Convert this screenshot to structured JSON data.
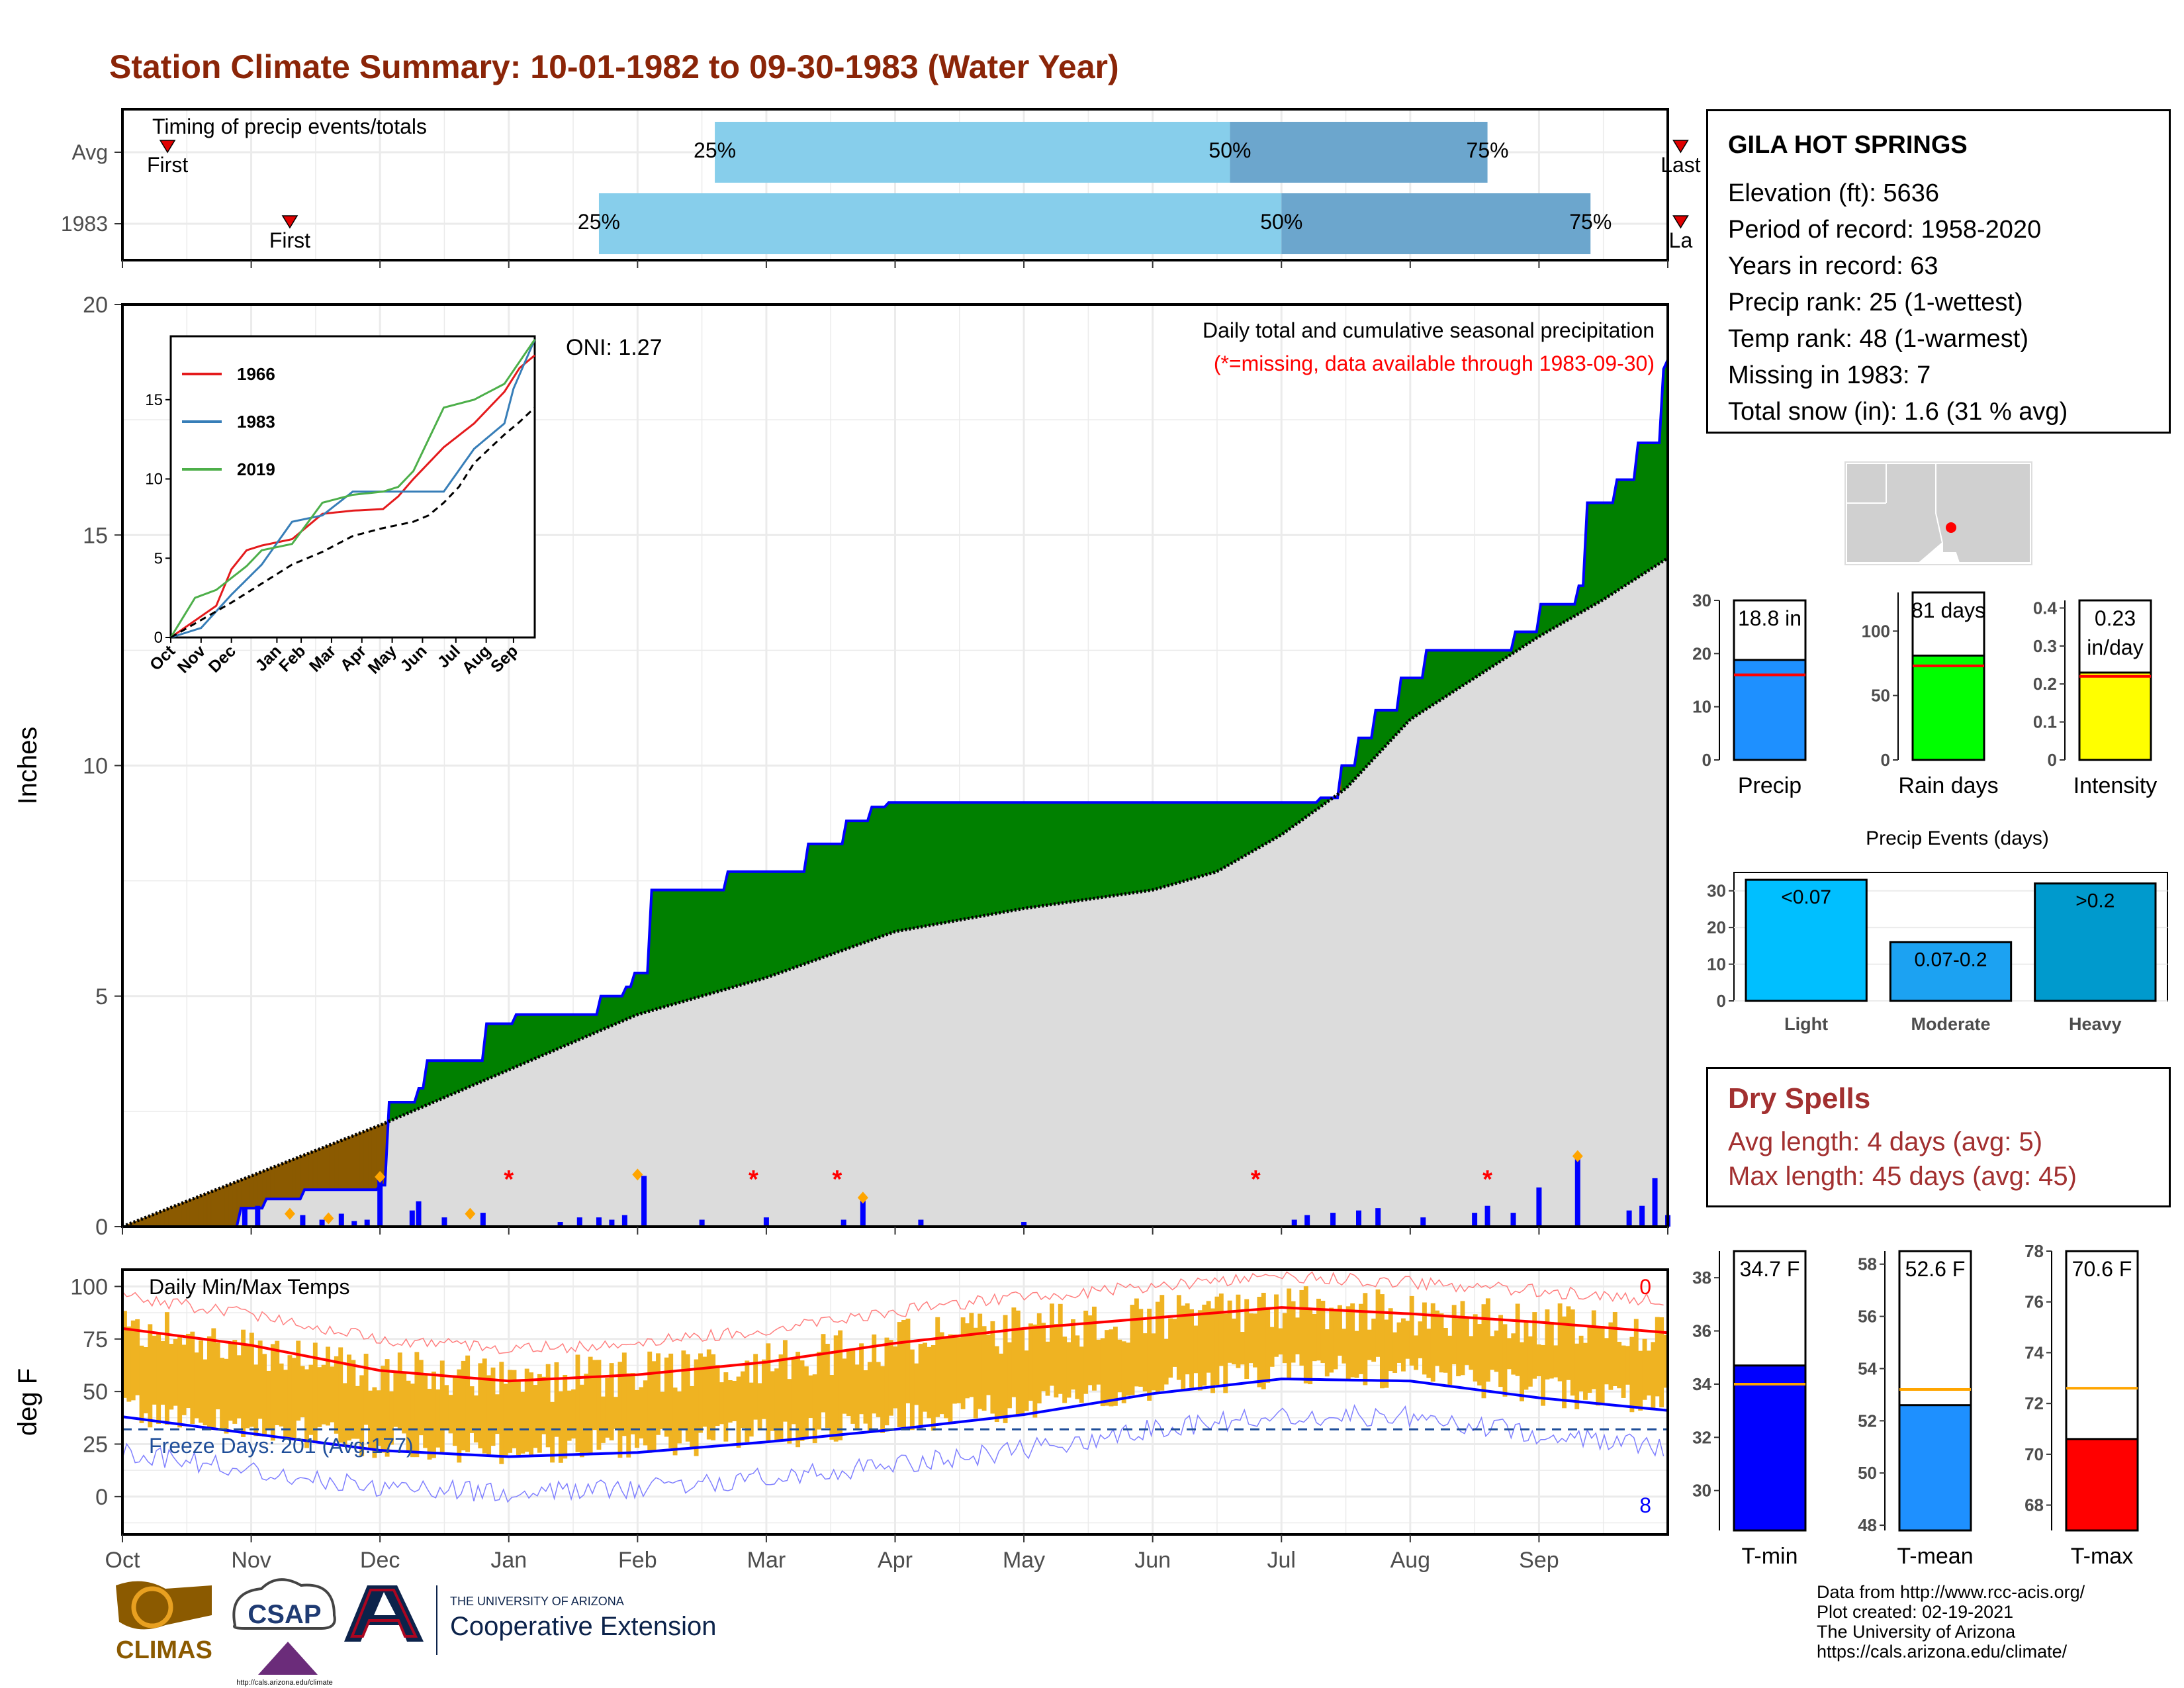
{
  "header": {
    "title": "Station Climate Summary: 10-01-1982 to 09-30-1983 (Water Year)"
  },
  "timing": {
    "label": "Timing of precip events/totals",
    "rows": [
      {
        "name": "Avg",
        "first": 0.35,
        "q25": 4.6,
        "q50": 8.6,
        "q75": 10.6,
        "last": 12.1,
        "first_label": "First",
        "last_label": "Last"
      },
      {
        "name": "1983",
        "first": 1.3,
        "q25": 3.7,
        "q50": 9.0,
        "q75": 11.4,
        "last": 12.1,
        "first_label": "First",
        "last_label": "La"
      }
    ],
    "pct_labels": [
      "25%",
      "50%",
      "75%"
    ],
    "colors": {
      "light": "#87CEEB",
      "dark": "#6CA6CD",
      "marker": "#E00000"
    }
  },
  "station": {
    "name": "GILA HOT SPRINGS",
    "rows": [
      "Elevation (ft): 5636",
      "Period of record: 1958-2020",
      "Years in record: 63",
      "Precip rank: 25 (1-wettest)",
      "Temp rank: 48 (1-warmest)",
      "Missing in 1983: 7",
      "Total snow (in): 1.6 (31 % avg)"
    ]
  },
  "months": [
    "Oct",
    "Nov",
    "Dec",
    "Jan",
    "Feb",
    "Mar",
    "Apr",
    "May",
    "Jun",
    "Jul",
    "Aug",
    "Sep"
  ],
  "precip_panel": {
    "ylabel": "Inches",
    "title": "Daily total and cumulative seasonal precipitation",
    "subtitle": "(*=missing, data available through 1983-09-30)",
    "oni": "ONI: 1.27",
    "colors": {
      "above": "#008000",
      "below": "#8B5A00",
      "avg": "#DCDCDC",
      "line": "#0000FF",
      "missing": "#FF0000",
      "snow": "#FFA500"
    }
  },
  "chart_data": [
    {
      "type": "area",
      "name": "Daily total and cumulative seasonal precipitation",
      "x_unit": "month",
      "ylim": [
        0,
        20
      ],
      "y_ticks": [
        0,
        5,
        10,
        15,
        20
      ],
      "cumulative_1983": [
        [
          0,
          0
        ],
        [
          0.9,
          0.4
        ],
        [
          1.1,
          0.6
        ],
        [
          1.4,
          0.8
        ],
        [
          2.0,
          0.9
        ],
        [
          2.05,
          2.7
        ],
        [
          2.3,
          3.0
        ],
        [
          2.35,
          3.6
        ],
        [
          2.8,
          4.4
        ],
        [
          3.05,
          4.6
        ],
        [
          3.7,
          5.0
        ],
        [
          3.9,
          5.2
        ],
        [
          3.95,
          5.5
        ],
        [
          4.1,
          7.3
        ],
        [
          4.7,
          7.7
        ],
        [
          5.3,
          8.3
        ],
        [
          5.6,
          8.8
        ],
        [
          5.8,
          9.1
        ],
        [
          5.95,
          9.2
        ],
        [
          6.2,
          9.2
        ],
        [
          9.2,
          9.2
        ],
        [
          9.3,
          9.3
        ],
        [
          9.45,
          10.0
        ],
        [
          9.6,
          10.6
        ],
        [
          9.7,
          11.2
        ],
        [
          9.9,
          11.9
        ],
        [
          10.1,
          12.5
        ],
        [
          10.8,
          12.9
        ],
        [
          11.0,
          13.5
        ],
        [
          11.3,
          13.9
        ],
        [
          11.35,
          15.7
        ],
        [
          11.6,
          16.2
        ],
        [
          11.75,
          17.0
        ],
        [
          11.95,
          18.6
        ],
        [
          12.0,
          18.8
        ]
      ],
      "cumulative_avg": [
        [
          0,
          0
        ],
        [
          1.0,
          1.1
        ],
        [
          2.0,
          2.2
        ],
        [
          3.0,
          3.4
        ],
        [
          4.0,
          4.6
        ],
        [
          5.0,
          5.4
        ],
        [
          6.0,
          6.4
        ],
        [
          7.0,
          6.9
        ],
        [
          8.0,
          7.3
        ],
        [
          8.5,
          7.7
        ],
        [
          9.0,
          8.5
        ],
        [
          9.5,
          9.5
        ],
        [
          10.0,
          11.0
        ],
        [
          11.0,
          12.8
        ],
        [
          11.5,
          13.6
        ],
        [
          12.0,
          14.5
        ]
      ],
      "daily_bars": [
        [
          0.95,
          0.4
        ],
        [
          1.05,
          0.45
        ],
        [
          1.4,
          0.25
        ],
        [
          1.55,
          0.15
        ],
        [
          1.7,
          0.28
        ],
        [
          1.8,
          0.12
        ],
        [
          1.9,
          0.15
        ],
        [
          2.0,
          1.05
        ],
        [
          2.25,
          0.35
        ],
        [
          2.3,
          0.55
        ],
        [
          2.5,
          0.2
        ],
        [
          2.8,
          0.3
        ],
        [
          3.4,
          0.1
        ],
        [
          3.55,
          0.2
        ],
        [
          3.7,
          0.2
        ],
        [
          3.8,
          0.15
        ],
        [
          3.9,
          0.25
        ],
        [
          4.05,
          1.1
        ],
        [
          4.5,
          0.15
        ],
        [
          5.0,
          0.2
        ],
        [
          5.6,
          0.15
        ],
        [
          5.75,
          0.6
        ],
        [
          6.2,
          0.15
        ],
        [
          7.0,
          0.1
        ],
        [
          9.1,
          0.15
        ],
        [
          9.2,
          0.25
        ],
        [
          9.4,
          0.3
        ],
        [
          9.6,
          0.35
        ],
        [
          9.75,
          0.4
        ],
        [
          10.1,
          0.2
        ],
        [
          10.5,
          0.3
        ],
        [
          10.6,
          0.45
        ],
        [
          10.8,
          0.3
        ],
        [
          11.0,
          0.85
        ],
        [
          11.3,
          1.5
        ],
        [
          11.7,
          0.35
        ],
        [
          11.8,
          0.45
        ],
        [
          11.9,
          1.05
        ],
        [
          12.0,
          0.25
        ]
      ],
      "missing_days": [
        3.0,
        4.9,
        5.55,
        8.8,
        10.6
      ],
      "snow_days": [
        1.3,
        1.6,
        2.0,
        2.7,
        4.0,
        5.75,
        11.3
      ]
    },
    {
      "type": "line",
      "name": "Cumulative precipitation comparison",
      "ylim": [
        0,
        19
      ],
      "y_ticks": [
        0,
        5,
        10,
        15
      ],
      "series": [
        {
          "name": "1966",
          "color": "#E41A1C",
          "values": [
            [
              0,
              0
            ],
            [
              1.5,
              2.0
            ],
            [
              2.0,
              4.3
            ],
            [
              2.5,
              5.5
            ],
            [
              3.0,
              5.8
            ],
            [
              4.0,
              6.2
            ],
            [
              5.0,
              7.8
            ],
            [
              6.0,
              8.0
            ],
            [
              7.0,
              8.1
            ],
            [
              7.5,
              8.9
            ],
            [
              8.0,
              10.0
            ],
            [
              9.0,
              12.0
            ],
            [
              10.0,
              13.5
            ],
            [
              11.0,
              15.5
            ],
            [
              11.5,
              17.0
            ],
            [
              12.0,
              17.8
            ]
          ]
        },
        {
          "name": "1983",
          "color": "#377EB8",
          "values": [
            [
              0,
              0
            ],
            [
              1.0,
              0.6
            ],
            [
              2.0,
              2.7
            ],
            [
              3.0,
              4.6
            ],
            [
              4.0,
              7.3
            ],
            [
              5.0,
              7.7
            ],
            [
              6.0,
              9.2
            ],
            [
              9.0,
              9.2
            ],
            [
              10.0,
              11.9
            ],
            [
              11.0,
              13.5
            ],
            [
              11.3,
              15.7
            ],
            [
              12.0,
              18.8
            ]
          ]
        },
        {
          "name": "2019",
          "color": "#4DAF4A",
          "values": [
            [
              0,
              0
            ],
            [
              0.8,
              2.5
            ],
            [
              1.5,
              3.0
            ],
            [
              2.5,
              4.5
            ],
            [
              3.0,
              5.5
            ],
            [
              4.0,
              5.9
            ],
            [
              5.0,
              8.5
            ],
            [
              6.0,
              9.0
            ],
            [
              7.0,
              9.2
            ],
            [
              7.5,
              9.5
            ],
            [
              8.0,
              10.5
            ],
            [
              9.0,
              14.5
            ],
            [
              10.0,
              15.0
            ],
            [
              11.0,
              16.0
            ],
            [
              12.0,
              18.8
            ]
          ]
        }
      ],
      "avg_values": [
        [
          0,
          0
        ],
        [
          1.0,
          1.1
        ],
        [
          2.0,
          2.2
        ],
        [
          3.0,
          3.4
        ],
        [
          4.0,
          4.6
        ],
        [
          5.0,
          5.4
        ],
        [
          6.0,
          6.4
        ],
        [
          7.0,
          6.9
        ],
        [
          8.0,
          7.3
        ],
        [
          8.5,
          7.7
        ],
        [
          9.0,
          8.5
        ],
        [
          9.5,
          9.5
        ],
        [
          10.0,
          11.0
        ],
        [
          11.0,
          12.8
        ],
        [
          11.5,
          13.6
        ],
        [
          12.0,
          14.5
        ]
      ]
    },
    {
      "type": "bar",
      "name": "Precip",
      "categories": [
        "Precip"
      ],
      "values": [
        18.8
      ],
      "avg": 16.0,
      "ylim": [
        0,
        30
      ],
      "y_ticks": [
        0,
        10,
        20,
        30
      ],
      "label": "18.8 in",
      "color": "#1E90FF"
    },
    {
      "type": "bar",
      "name": "Rain days",
      "categories": [
        "Rain days"
      ],
      "values": [
        81
      ],
      "avg": 73,
      "ylim": [
        0,
        130
      ],
      "y_ticks": [
        0,
        50,
        100
      ],
      "label": "81 days",
      "color": "#00FF00"
    },
    {
      "type": "bar",
      "name": "Intensity",
      "categories": [
        "Intensity"
      ],
      "values": [
        0.23
      ],
      "avg": 0.22,
      "ylim": [
        0,
        0.42
      ],
      "y_ticks": [
        0.0,
        0.1,
        0.2,
        0.3,
        0.4
      ],
      "label_lines": [
        "0.23",
        "in/day"
      ],
      "color": "#FFFF00"
    },
    {
      "type": "bar",
      "name": "Precip Events (days)",
      "categories": [
        "Light",
        "Moderate",
        "Heavy"
      ],
      "values": [
        33,
        16,
        32
      ],
      "bar_labels": [
        "<0.07",
        "0.07-0.2",
        ">0.2"
      ],
      "ylim": [
        0,
        35
      ],
      "y_ticks": [
        0,
        10,
        20,
        30
      ],
      "colors": [
        "#00BFFF",
        "#1CA2F2",
        "#009ACD"
      ]
    },
    {
      "type": "line",
      "name": "Daily Min/Max Temps",
      "ylabel": "deg F",
      "ylim": [
        -18,
        108
      ],
      "y_ticks": [
        0,
        25,
        50,
        75,
        100
      ],
      "freeze_label": "Freeze Days: 201 (Avg:177)",
      "freeze_line": 32,
      "max_count_label": "0",
      "min_count_label": "8",
      "avg_max": [
        [
          0,
          80
        ],
        [
          1,
          72
        ],
        [
          2,
          60
        ],
        [
          3,
          55
        ],
        [
          4,
          58
        ],
        [
          5,
          64
        ],
        [
          6,
          73
        ],
        [
          7,
          80
        ],
        [
          8,
          85
        ],
        [
          9,
          90
        ],
        [
          10,
          87
        ],
        [
          11,
          83
        ],
        [
          12,
          78
        ]
      ],
      "avg_min": [
        [
          0,
          38
        ],
        [
          1,
          30
        ],
        [
          2,
          22
        ],
        [
          3,
          19
        ],
        [
          4,
          21
        ],
        [
          5,
          26
        ],
        [
          6,
          32
        ],
        [
          7,
          39
        ],
        [
          8,
          49
        ],
        [
          9,
          56
        ],
        [
          10,
          55
        ],
        [
          11,
          47
        ],
        [
          12,
          41
        ]
      ],
      "colors": {
        "range": "#EFB322",
        "max": "#FF0000",
        "min": "#0000FF"
      }
    },
    {
      "type": "bar",
      "name": "T-min",
      "categories": [
        "T-min"
      ],
      "values": [
        34.7
      ],
      "avg": 34.0,
      "ylim": [
        28.5,
        39
      ],
      "y_ticks": [
        30,
        32,
        34,
        36,
        38
      ],
      "label": "34.7 F",
      "color": "#0000FF"
    },
    {
      "type": "bar",
      "name": "T-mean",
      "categories": [
        "T-mean"
      ],
      "values": [
        52.6
      ],
      "avg": 53.2,
      "ylim": [
        47.8,
        58.5
      ],
      "y_ticks": [
        48,
        50,
        52,
        54,
        56,
        58
      ],
      "label": "52.6 F",
      "color": "#1E90FF"
    },
    {
      "type": "bar",
      "name": "T-max",
      "categories": [
        "T-max"
      ],
      "values": [
        70.6
      ],
      "avg": 72.6,
      "ylim": [
        67,
        78
      ],
      "y_ticks": [
        68,
        70,
        72,
        74,
        76,
        78
      ],
      "label": "70.6 F",
      "color": "#FF0000"
    }
  ],
  "dry_spells": {
    "title": "Dry Spells",
    "rows": [
      "Avg length: 4 days (avg: 5)",
      "Max length: 45 days (avg: 45)"
    ]
  },
  "logos": {
    "climas": "CLIMAS",
    "csap": "CSAP",
    "csap_url": "http://cals.arizona.edu/climate",
    "ua_line1": "THE UNIVERSITY OF ARIZONA",
    "ua_line2": "Cooperative Extension"
  },
  "footer": {
    "lines": [
      "Data from http://www.rcc-acis.org/",
      "Plot created: 02-19-2021",
      "The University of Arizona",
      "https://cals.arizona.edu/climate/"
    ]
  }
}
